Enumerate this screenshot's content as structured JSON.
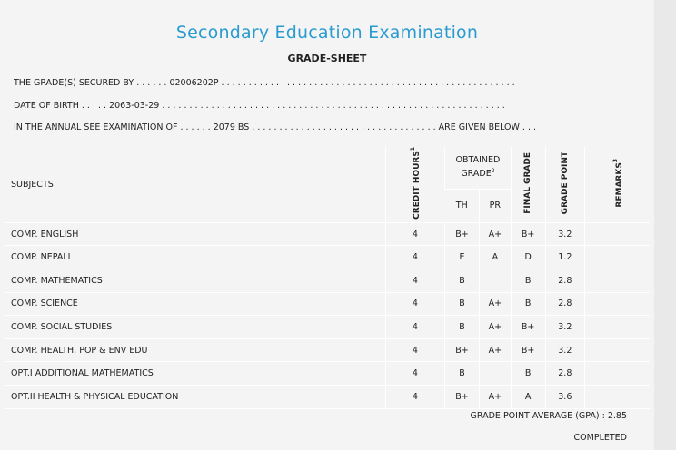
{
  "header": {
    "title": "Secondary Education Examination",
    "subtitle": "GRADE-SHEET"
  },
  "info": {
    "line1": "THE GRADE(S) SECURED BY . . . . . . 02006202P . . . . . . . . . . . . . . . . . . . . . . . . . . . . . . . . . . . . . . . . . . . . . . . . . . . . . .",
    "line2": "DATE OF BIRTH . . . . . 2063-03-29 . . . . . . . . . . . . . . . . . . . . . . . . . . . . . . . . . . . . . . . . . . . . . . . . . . . . . . . . . . . . . . .",
    "line3": "IN THE ANNUAL SEE EXAMINATION OF . . . . . . 2079 BS . . . . . . . . . . . . . . . . . . . . . . . . . . . . . . . . . . ARE GIVEN BELOW . . ."
  },
  "table": {
    "col_subjects": "SUBJECTS",
    "col_credit": "CREDIT HOURS",
    "col_credit_sup": "1",
    "col_obtained": "OBTAINED GRADE",
    "col_obtained_sup": "2",
    "col_th": "TH",
    "col_pr": "PR",
    "col_final": "FINAL GRADE",
    "col_gp": "GRADE POINT",
    "col_remarks": "REMARKS",
    "col_remarks_sup": "3",
    "rows": [
      {
        "subject": "COMP. ENGLISH",
        "credit": "4",
        "th": "B+",
        "pr": "A+",
        "final": "B+",
        "gp": "3.2",
        "remarks": ""
      },
      {
        "subject": "COMP. NEPALI",
        "credit": "4",
        "th": "E",
        "pr": "A",
        "final": "D",
        "gp": "1.2",
        "remarks": ""
      },
      {
        "subject": "COMP. MATHEMATICS",
        "credit": "4",
        "th": "B",
        "pr": "",
        "final": "B",
        "gp": "2.8",
        "remarks": ""
      },
      {
        "subject": "COMP. SCIENCE",
        "credit": "4",
        "th": "B",
        "pr": "A+",
        "final": "B",
        "gp": "2.8",
        "remarks": ""
      },
      {
        "subject": "COMP. SOCIAL STUDIES",
        "credit": "4",
        "th": "B",
        "pr": "A+",
        "final": "B+",
        "gp": "3.2",
        "remarks": ""
      },
      {
        "subject": "COMP. HEALTH, POP & ENV EDU",
        "credit": "4",
        "th": "B+",
        "pr": "A+",
        "final": "B+",
        "gp": "3.2",
        "remarks": ""
      },
      {
        "subject": "OPT.I ADDITIONAL MATHEMATICS",
        "credit": "4",
        "th": "B",
        "pr": "",
        "final": "B",
        "gp": "2.8",
        "remarks": ""
      },
      {
        "subject": "OPT.II HEALTH & PHYSICAL EDUCATION",
        "credit": "4",
        "th": "B+",
        "pr": "A+",
        "final": "A",
        "gp": "3.6",
        "remarks": ""
      }
    ]
  },
  "footer": {
    "gpa": "GRADE POINT AVERAGE (GPA) : 2.85",
    "status": "COMPLETED"
  }
}
